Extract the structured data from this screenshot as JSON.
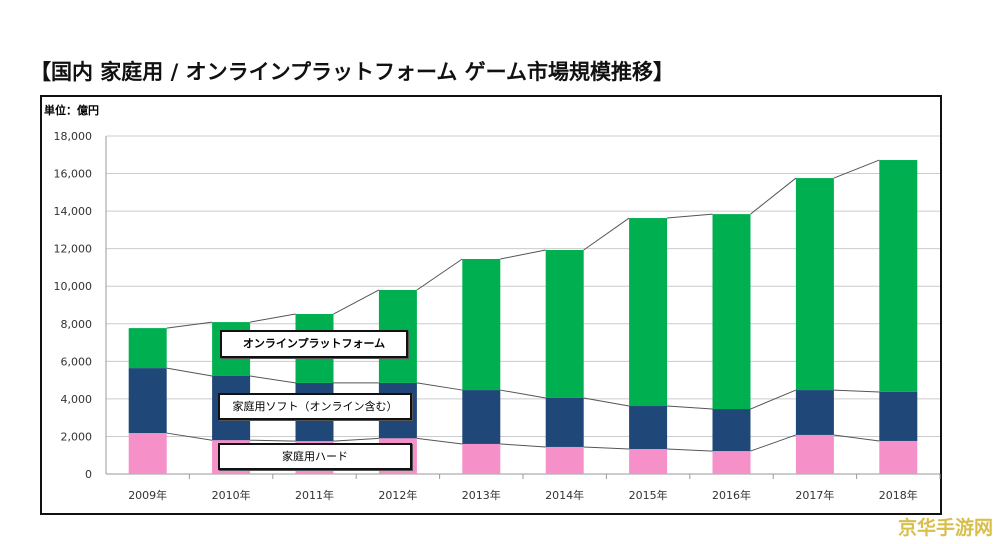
{
  "title": "【国内 家庭用 / オンラインプラットフォーム ゲーム市場規模推移】",
  "watermark": "京华手游网",
  "chart_data": {
    "type": "bar",
    "stacked": true,
    "title": "【国内 家庭用 / オンラインプラットフォーム ゲーム市場規模推移】",
    "unit_label": "単位：億円",
    "categories": [
      "2009年",
      "2010年",
      "2011年",
      "2012年",
      "2013年",
      "2014年",
      "2015年",
      "2016年",
      "2017年",
      "2018年"
    ],
    "series": [
      {
        "name": "家庭用ハード",
        "color": "#f590c8",
        "values": [
          2180,
          1800,
          1750,
          1900,
          1600,
          1440,
          1330,
          1220,
          2080,
          1760
        ]
      },
      {
        "name": "家庭用ソフト（オンライン含む）",
        "color": "#1f4778",
        "values": [
          3460,
          3420,
          3100,
          2950,
          2870,
          2610,
          2290,
          2240,
          2390,
          2610
        ]
      },
      {
        "name": "オンラインプラットフォーム",
        "color": "#00b050",
        "values": [
          2130,
          2870,
          3670,
          4950,
          6980,
          7880,
          10010,
          10380,
          11290,
          12350
        ]
      }
    ],
    "ylim": [
      0,
      18000
    ],
    "yticks": [
      "0",
      "2,000",
      "4,000",
      "6,000",
      "8,000",
      "10,000",
      "12,000",
      "14,000",
      "16,000",
      "18,000"
    ],
    "grid": true,
    "legend": "inline labels"
  }
}
